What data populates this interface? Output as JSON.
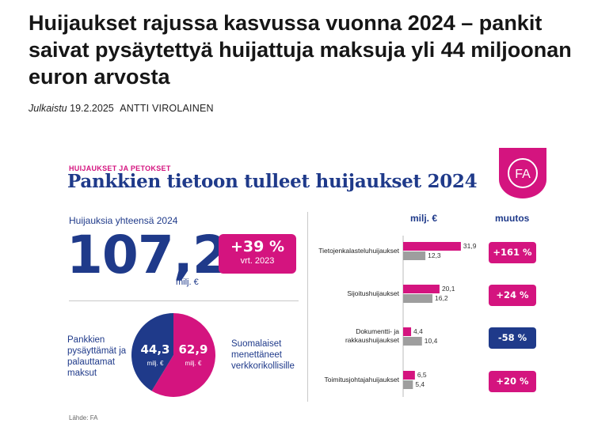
{
  "article": {
    "headline": "Huijaukset rajussa kasvussa vuonna 2024 – pankit saivat pysäytettyä huijattuja maksuja yli 44 miljoonan euron arvosta",
    "published_label": "Julkaistu",
    "published_date": "19.2.2025",
    "author": "ANTTI VIROLAINEN"
  },
  "infographic": {
    "kicker": "HUIJAUKSET JA PETOKSET",
    "title": "Pankkien tietoon tulleet huijaukset 2024",
    "logo_text": "FA",
    "total_label": "Huijauksia yhteensä 2024",
    "total_value": "107,2",
    "total_unit": "milj. €",
    "change_value": "+39 %",
    "change_ref": "vrt. 2023",
    "pie": {
      "left_label": "Pankkien pysäyttämät ja palauttamat maksut",
      "right_label": "Suomalaiset menettäneet verkkorikollisille",
      "stopped_value": "44,3",
      "lost_value": "62,9",
      "unit": "milj. €",
      "colors": {
        "stopped": "#1f3a8a",
        "lost": "#d4147f"
      }
    },
    "col_amount": "milj. €",
    "col_change": "muutos",
    "source": "Lähde: FA"
  },
  "chart_data": {
    "type": "bar",
    "orientation": "horizontal",
    "categories": [
      "Tietojenkalasteluhuijaukset",
      "Sijoitushuijaukset",
      "Dokumentti- ja rakkaushuijaukset",
      "Toimitusjohtajahuijaukset"
    ],
    "series": [
      {
        "name": "",
        "color": "#d4147f",
        "values": [
          31.9,
          20.1,
          4.4,
          6.5
        ],
        "labels": [
          "31,9",
          "20,1",
          "4,4",
          "6,5"
        ]
      },
      {
        "name": "",
        "color": "#9e9e9e",
        "values": [
          12.3,
          16.2,
          10.4,
          5.4
        ],
        "labels": [
          "12,3",
          "16,2",
          "10,4",
          "5,4"
        ]
      }
    ],
    "changes": [
      {
        "text": "+161 %",
        "sign": "pos"
      },
      {
        "text": "+24 %",
        "sign": "pos"
      },
      {
        "text": "-58 %",
        "sign": "neg"
      },
      {
        "text": "+20 %",
        "sign": "pos"
      }
    ],
    "xlim": [
      0,
      35
    ]
  }
}
